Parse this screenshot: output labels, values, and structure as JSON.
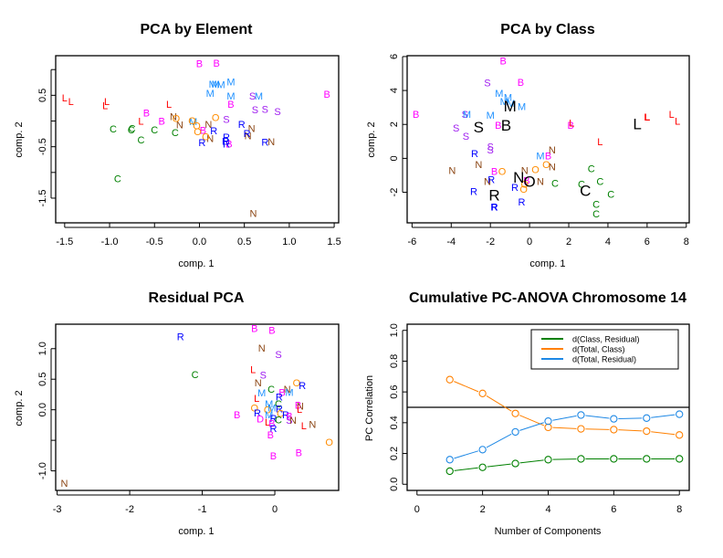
{
  "colors": {
    "B": "#ff00ff",
    "C": "#008000",
    "L": "#ff0000",
    "M": "#1e90ff",
    "N": "#8b4513",
    "O": "#ff8c00",
    "R": "#0000ff",
    "S": "#a020f0",
    "centroid": "#000000",
    "green_series": "#008000",
    "orange_series": "#ff8000",
    "blue_series": "#1e88e5",
    "refline": "#000000"
  },
  "chart_data": [
    {
      "id": "pca_element",
      "type": "scatter",
      "title": "PCA by Element",
      "xlabel": "comp. 1",
      "ylabel": "comp. 2",
      "xlim": [
        -1.6,
        1.55
      ],
      "ylim": [
        -1.98,
        1.27
      ],
      "xticks": [
        "-1.5",
        "-1.0",
        "-0.5",
        "0.0",
        "0.5",
        "1.0",
        "1.5"
      ],
      "xtick_values": [
        -1.5,
        -1.0,
        -0.5,
        0.0,
        0.5,
        1.0,
        1.5
      ],
      "yticks": [
        "-1.5",
        "-0.5",
        "0.5"
      ],
      "ytick_values": [
        -1.5,
        -0.5,
        0.5
      ],
      "yminor_ticks": [
        -1.0,
        0.0,
        1.0
      ],
      "points": [
        {
          "x": 0.0,
          "y": 1.12,
          "label": "B"
        },
        {
          "x": 0.19,
          "y": 1.13,
          "label": "B"
        },
        {
          "x": 1.42,
          "y": 0.52,
          "label": "B"
        },
        {
          "x": 0.35,
          "y": 0.33,
          "label": "B"
        },
        {
          "x": -0.59,
          "y": 0.16,
          "label": "B"
        },
        {
          "x": -0.42,
          "y": 0.0,
          "label": "B"
        },
        {
          "x": 0.04,
          "y": -0.18,
          "label": "B"
        },
        {
          "x": 0.33,
          "y": -0.44,
          "label": "B"
        },
        {
          "x": 0.15,
          "y": 0.72,
          "label": "M"
        },
        {
          "x": 0.18,
          "y": 0.72,
          "label": "M"
        },
        {
          "x": 0.24,
          "y": 0.71,
          "label": "M"
        },
        {
          "x": 0.35,
          "y": 0.76,
          "label": "M"
        },
        {
          "x": 0.12,
          "y": 0.54,
          "label": "M"
        },
        {
          "x": 0.35,
          "y": 0.49,
          "label": "M"
        },
        {
          "x": 0.66,
          "y": 0.49,
          "label": "M"
        },
        {
          "x": -0.07,
          "y": -0.01,
          "label": "M"
        },
        {
          "x": 0.59,
          "y": 0.49,
          "label": "S"
        },
        {
          "x": 0.62,
          "y": 0.22,
          "label": "S"
        },
        {
          "x": 0.73,
          "y": 0.23,
          "label": "S"
        },
        {
          "x": 0.87,
          "y": 0.19,
          "label": "S"
        },
        {
          "x": 0.3,
          "y": 0.04,
          "label": "S"
        },
        {
          "x": -1.5,
          "y": 0.45,
          "label": "L"
        },
        {
          "x": -1.43,
          "y": 0.38,
          "label": "L"
        },
        {
          "x": -1.03,
          "y": 0.38,
          "label": "L"
        },
        {
          "x": -1.05,
          "y": 0.3,
          "label": "L"
        },
        {
          "x": -0.34,
          "y": 0.33,
          "label": "L"
        },
        {
          "x": -0.65,
          "y": 0.0,
          "label": "L"
        },
        {
          "x": -0.96,
          "y": -0.15,
          "label": "C"
        },
        {
          "x": -0.75,
          "y": -0.14,
          "label": "C"
        },
        {
          "x": -0.76,
          "y": -0.17,
          "label": "C"
        },
        {
          "x": -0.5,
          "y": -0.17,
          "label": "C"
        },
        {
          "x": -0.27,
          "y": -0.22,
          "label": "C"
        },
        {
          "x": -0.65,
          "y": -0.36,
          "label": "C"
        },
        {
          "x": -0.91,
          "y": -1.12,
          "label": "C"
        },
        {
          "x": -0.29,
          "y": 0.09,
          "label": "N"
        },
        {
          "x": -0.22,
          "y": -0.07,
          "label": "N"
        },
        {
          "x": 0.1,
          "y": -0.06,
          "label": "N"
        },
        {
          "x": 0.12,
          "y": -0.34,
          "label": "N"
        },
        {
          "x": 0.58,
          "y": -0.14,
          "label": "N"
        },
        {
          "x": 0.54,
          "y": -0.28,
          "label": "N"
        },
        {
          "x": 0.8,
          "y": -0.4,
          "label": "N"
        },
        {
          "x": 0.6,
          "y": -1.79,
          "label": "N"
        },
        {
          "x": -0.26,
          "y": 0.05,
          "label": "O"
        },
        {
          "x": -0.08,
          "y": 0.01,
          "label": "O"
        },
        {
          "x": -0.03,
          "y": -0.09,
          "label": "O"
        },
        {
          "x": -0.02,
          "y": -0.2,
          "label": "O"
        },
        {
          "x": 0.07,
          "y": -0.3,
          "label": "O"
        },
        {
          "x": 0.18,
          "y": 0.07,
          "label": "O"
        },
        {
          "x": 0.16,
          "y": -0.19,
          "label": "R"
        },
        {
          "x": 0.03,
          "y": -0.42,
          "label": "R"
        },
        {
          "x": 0.3,
          "y": -0.31,
          "label": "R"
        },
        {
          "x": 0.29,
          "y": -0.39,
          "label": "R"
        },
        {
          "x": 0.3,
          "y": -0.44,
          "label": "R"
        },
        {
          "x": 0.47,
          "y": -0.06,
          "label": "R"
        },
        {
          "x": 0.53,
          "y": -0.24,
          "label": "R"
        },
        {
          "x": 0.73,
          "y": -0.41,
          "label": "R"
        }
      ]
    },
    {
      "id": "pca_class",
      "type": "scatter",
      "title": "PCA by Class",
      "xlabel": "comp. 1",
      "ylabel": "comp. 2",
      "xlim": [
        -6.25,
        8.15
      ],
      "ylim": [
        -3.8,
        6.05
      ],
      "xticks": [
        "-6",
        "-4",
        "-2",
        "0",
        "2",
        "4",
        "6",
        "8"
      ],
      "xtick_values": [
        -6,
        -4,
        -2,
        0,
        2,
        4,
        6,
        8
      ],
      "yticks": [
        "-2",
        "0",
        "2",
        "4",
        "6"
      ],
      "ytick_values": [
        -2,
        0,
        2,
        4,
        6
      ],
      "points": [
        {
          "x": -1.35,
          "y": 5.75,
          "label": "B"
        },
        {
          "x": -0.45,
          "y": 4.5,
          "label": "B"
        },
        {
          "x": -5.8,
          "y": 2.6,
          "label": "B"
        },
        {
          "x": -1.6,
          "y": 1.95,
          "label": "B"
        },
        {
          "x": 2.1,
          "y": 1.95,
          "label": "B"
        },
        {
          "x": 0.95,
          "y": 0.15,
          "label": "B"
        },
        {
          "x": -1.8,
          "y": -0.75,
          "label": "B"
        },
        {
          "x": -0.15,
          "y": -1.3,
          "label": "B"
        },
        {
          "x": -2.15,
          "y": 4.45,
          "label": "S"
        },
        {
          "x": -3.3,
          "y": 2.6,
          "label": "S"
        },
        {
          "x": -3.75,
          "y": 1.8,
          "label": "S"
        },
        {
          "x": -3.25,
          "y": 1.3,
          "label": "S"
        },
        {
          "x": -2.0,
          "y": 0.7,
          "label": "S"
        },
        {
          "x": -2.0,
          "y": 0.5,
          "label": "S"
        },
        {
          "x": -1.55,
          "y": 3.85,
          "label": "M"
        },
        {
          "x": -1.1,
          "y": 3.6,
          "label": "M"
        },
        {
          "x": -1.3,
          "y": 3.35,
          "label": "M"
        },
        {
          "x": -0.95,
          "y": 3.25,
          "label": "M"
        },
        {
          "x": -0.4,
          "y": 3.05,
          "label": "M"
        },
        {
          "x": -3.2,
          "y": 2.6,
          "label": "M"
        },
        {
          "x": -2.0,
          "y": 2.55,
          "label": "M"
        },
        {
          "x": 0.55,
          "y": 0.15,
          "label": "M"
        },
        {
          "x": 2.15,
          "y": 2.1,
          "label": "L"
        },
        {
          "x": 6.0,
          "y": 2.45,
          "label": "L",
          "bold": true
        },
        {
          "x": 7.25,
          "y": 2.6,
          "label": "L"
        },
        {
          "x": 7.55,
          "y": 2.2,
          "label": "L"
        },
        {
          "x": 3.6,
          "y": 1.0,
          "label": "L"
        },
        {
          "x": 3.15,
          "y": -0.6,
          "label": "C"
        },
        {
          "x": 3.6,
          "y": -1.35,
          "label": "C"
        },
        {
          "x": 2.65,
          "y": -1.5,
          "label": "C"
        },
        {
          "x": 1.3,
          "y": -1.45,
          "label": "C"
        },
        {
          "x": 4.15,
          "y": -2.1,
          "label": "C"
        },
        {
          "x": 3.4,
          "y": -2.7,
          "label": "C"
        },
        {
          "x": 3.4,
          "y": -3.25,
          "label": "C"
        },
        {
          "x": 1.15,
          "y": 0.5,
          "label": "N"
        },
        {
          "x": 1.15,
          "y": -0.5,
          "label": "N"
        },
        {
          "x": -3.95,
          "y": -0.7,
          "label": "N"
        },
        {
          "x": -2.6,
          "y": -0.35,
          "label": "N"
        },
        {
          "x": -2.15,
          "y": -1.35,
          "label": "N"
        },
        {
          "x": -0.25,
          "y": -0.7,
          "label": "N"
        },
        {
          "x": 0.55,
          "y": -1.35,
          "label": "N"
        },
        {
          "x": -1.4,
          "y": -0.75,
          "label": "O"
        },
        {
          "x": 0.3,
          "y": -0.65,
          "label": "O"
        },
        {
          "x": 0.85,
          "y": -0.35,
          "label": "O"
        },
        {
          "x": -0.25,
          "y": -1.5,
          "label": "O"
        },
        {
          "x": -0.3,
          "y": -1.8,
          "label": "O"
        },
        {
          "x": -2.8,
          "y": 0.3,
          "label": "R"
        },
        {
          "x": -1.95,
          "y": -1.25,
          "label": "R"
        },
        {
          "x": -2.85,
          "y": -1.95,
          "label": "R"
        },
        {
          "x": -0.75,
          "y": -1.7,
          "label": "R"
        },
        {
          "x": -0.4,
          "y": -2.55,
          "label": "R"
        },
        {
          "x": -1.8,
          "y": -2.85,
          "label": "R",
          "bold": true
        }
      ],
      "centroids": [
        {
          "x": -1.0,
          "y": 3.1,
          "label": "M"
        },
        {
          "x": -2.6,
          "y": 1.85,
          "label": "S"
        },
        {
          "x": -1.2,
          "y": 1.95,
          "label": "B"
        },
        {
          "x": 5.5,
          "y": 2.05,
          "label": "L"
        },
        {
          "x": -0.55,
          "y": -1.1,
          "label": "N"
        },
        {
          "x": 0.0,
          "y": -1.35,
          "label": "O"
        },
        {
          "x": -1.8,
          "y": -2.15,
          "label": "R"
        },
        {
          "x": 2.85,
          "y": -1.9,
          "label": "C"
        }
      ]
    },
    {
      "id": "residual_pca",
      "type": "scatter",
      "title": "Residual PCA",
      "xlabel": "comp. 1",
      "ylabel": "comp. 2",
      "xlim": [
        -3.02,
        0.88
      ],
      "ylim": [
        -1.32,
        1.4
      ],
      "xticks": [
        "-3",
        "-2",
        "-1",
        "0"
      ],
      "xtick_values": [
        -3,
        -2,
        -1,
        0
      ],
      "yticks": [
        "-1.0",
        "0.0",
        "0.5",
        "1.0"
      ],
      "ytick_values": [
        -1.0,
        0.0,
        0.5,
        1.0
      ],
      "yminor_ticks": [
        -0.5
      ],
      "points": [
        {
          "x": -1.3,
          "y": 1.2,
          "label": "R"
        },
        {
          "x": -1.1,
          "y": 0.58,
          "label": "C"
        },
        {
          "x": -2.9,
          "y": -1.2,
          "label": "N"
        },
        {
          "x": -0.28,
          "y": 1.33,
          "label": "B"
        },
        {
          "x": -0.04,
          "y": 1.3,
          "label": "B"
        },
        {
          "x": -0.18,
          "y": 1.01,
          "label": "N"
        },
        {
          "x": 0.05,
          "y": 0.91,
          "label": "S"
        },
        {
          "x": -0.3,
          "y": 0.66,
          "label": "L"
        },
        {
          "x": -0.16,
          "y": 0.57,
          "label": "S"
        },
        {
          "x": -0.23,
          "y": 0.44,
          "label": "N"
        },
        {
          "x": 0.3,
          "y": 0.44,
          "label": "O"
        },
        {
          "x": 0.38,
          "y": 0.4,
          "label": "R"
        },
        {
          "x": -0.05,
          "y": 0.34,
          "label": "C"
        },
        {
          "x": 0.17,
          "y": 0.34,
          "label": "N"
        },
        {
          "x": -0.18,
          "y": 0.28,
          "label": "M"
        },
        {
          "x": 0.1,
          "y": 0.29,
          "label": "B"
        },
        {
          "x": 0.2,
          "y": 0.29,
          "label": "M"
        },
        {
          "x": -0.25,
          "y": 0.19,
          "label": "L"
        },
        {
          "x": 0.06,
          "y": 0.21,
          "label": "R"
        },
        {
          "x": -0.08,
          "y": 0.1,
          "label": "M"
        },
        {
          "x": 0.05,
          "y": 0.1,
          "label": "C"
        },
        {
          "x": 0.32,
          "y": 0.08,
          "label": "B"
        },
        {
          "x": 0.35,
          "y": 0.06,
          "label": "N"
        },
        {
          "x": -0.28,
          "y": 0.03,
          "label": "O"
        },
        {
          "x": -0.1,
          "y": 0.0,
          "label": "O"
        },
        {
          "x": -0.04,
          "y": 0.03,
          "label": "M"
        },
        {
          "x": 0.06,
          "y": 0.02,
          "label": "R"
        },
        {
          "x": 0.34,
          "y": 0.01,
          "label": "L"
        },
        {
          "x": -0.52,
          "y": -0.08,
          "label": "B"
        },
        {
          "x": -0.24,
          "y": -0.05,
          "label": "R"
        },
        {
          "x": -0.08,
          "y": -0.08,
          "label": "M"
        },
        {
          "x": 0.08,
          "y": -0.06,
          "label": "O"
        },
        {
          "x": 0.15,
          "y": -0.08,
          "label": "R"
        },
        {
          "x": 0.2,
          "y": -0.1,
          "label": "B"
        },
        {
          "x": -0.2,
          "y": -0.15,
          "label": "D"
        },
        {
          "x": -0.02,
          "y": -0.14,
          "label": "R"
        },
        {
          "x": 0.05,
          "y": -0.16,
          "label": "C"
        },
        {
          "x": 0.2,
          "y": -0.17,
          "label": "S"
        },
        {
          "x": 0.25,
          "y": -0.17,
          "label": "N"
        },
        {
          "x": -0.1,
          "y": -0.2,
          "label": "L"
        },
        {
          "x": -0.04,
          "y": -0.22,
          "label": "B"
        },
        {
          "x": 0.4,
          "y": -0.26,
          "label": "L"
        },
        {
          "x": 0.52,
          "y": -0.24,
          "label": "N"
        },
        {
          "x": -0.02,
          "y": -0.3,
          "label": "R"
        },
        {
          "x": -0.06,
          "y": -0.41,
          "label": "B"
        },
        {
          "x": 0.75,
          "y": -0.53,
          "label": "O"
        },
        {
          "x": 0.33,
          "y": -0.7,
          "label": "B"
        },
        {
          "x": -0.02,
          "y": -0.75,
          "label": "B"
        }
      ]
    },
    {
      "id": "cumulative_pc_anova",
      "type": "line",
      "title": "Cumulative PC-ANOVA Chromosome 14",
      "xlabel": "Number of Components",
      "ylabel": "PC Correlation",
      "xlim": [
        -0.3,
        8.3
      ],
      "ylim": [
        -0.04,
        1.04
      ],
      "xticks": [
        "0",
        "2",
        "4",
        "6",
        "8"
      ],
      "xtick_values": [
        0,
        2,
        4,
        6,
        8
      ],
      "yticks": [
        "0.0",
        "0.2",
        "0.4",
        "0.6",
        "0.8",
        "1.0"
      ],
      "ytick_values": [
        0.0,
        0.2,
        0.4,
        0.6,
        0.8,
        1.0
      ],
      "hline": 0.5,
      "legend_position": "top-right",
      "x": [
        1,
        2,
        3,
        4,
        5,
        6,
        7,
        8
      ],
      "series": [
        {
          "name": "d(Class, Residual)",
          "color_key": "green_series",
          "values": [
            0.085,
            0.11,
            0.135,
            0.16,
            0.165,
            0.165,
            0.165,
            0.165
          ]
        },
        {
          "name": "d(Total, Class)",
          "color_key": "orange_series",
          "values": [
            0.68,
            0.59,
            0.46,
            0.37,
            0.36,
            0.355,
            0.345,
            0.32
          ]
        },
        {
          "name": "d(Total, Residual)",
          "color_key": "blue_series",
          "values": [
            0.16,
            0.225,
            0.34,
            0.41,
            0.45,
            0.425,
            0.43,
            0.455
          ]
        }
      ]
    }
  ]
}
